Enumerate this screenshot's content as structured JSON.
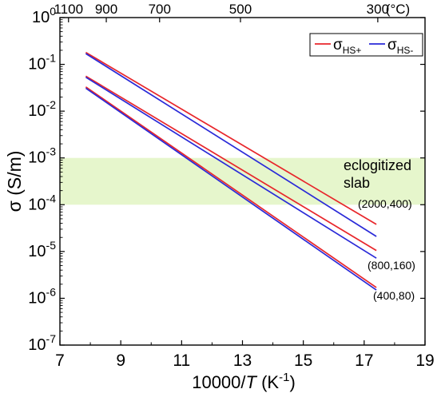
{
  "chart_data": {
    "type": "line",
    "xlabel": {
      "prefix": "10000/",
      "italic": "T",
      "suffix": " (K",
      "sup": "-1",
      "end": ")"
    },
    "ylabel": "σ (S/m)",
    "xlim": [
      7,
      19
    ],
    "x_ticks": [
      7,
      9,
      11,
      13,
      15,
      17,
      19
    ],
    "ylim_log10": [
      -7,
      0
    ],
    "y_ticks": [
      {
        "base": "10",
        "exp": "0"
      },
      {
        "base": "10",
        "exp": "-1"
      },
      {
        "base": "10",
        "exp": "-2"
      },
      {
        "base": "10",
        "exp": "-3"
      },
      {
        "base": "10",
        "exp": "-4"
      },
      {
        "base": "10",
        "exp": "-5"
      },
      {
        "base": "10",
        "exp": "-6"
      },
      {
        "base": "10",
        "exp": "-7"
      }
    ],
    "top_axis": {
      "ticks": [
        {
          "label": "1100",
          "celsius": 1100
        },
        {
          "label": "900",
          "celsius": 900
        },
        {
          "label": "700",
          "celsius": 700
        },
        {
          "label": "500",
          "celsius": 500
        },
        {
          "label": "300",
          "celsius": 300
        }
      ],
      "unit": "(°C)"
    },
    "band": {
      "label_line1": "eclogitized",
      "label_line2": "slab",
      "y_from": 0.0001,
      "y_to": 0.001,
      "color": "#e6f6cc"
    },
    "legend": {
      "position": "top-right",
      "items": [
        {
          "base": "σ",
          "sub": "HS+",
          "color": "#e8262b"
        },
        {
          "base": "σ",
          "sub": "HS-",
          "color": "#2a2ad8"
        }
      ]
    },
    "series": [
      {
        "group": "(2000,400)",
        "color": "#e8262b",
        "x": [
          7.85,
          17.4
        ],
        "y": [
          0.18,
          3.8e-05
        ]
      },
      {
        "group": "(2000,400)",
        "color": "#2a2ad8",
        "x": [
          7.85,
          17.4
        ],
        "y": [
          0.17,
          2.1e-05
        ]
      },
      {
        "group": "(800,160)",
        "color": "#e8262b",
        "x": [
          7.85,
          17.4
        ],
        "y": [
          0.056,
          1.05e-05
        ]
      },
      {
        "group": "(800,160)",
        "color": "#2a2ad8",
        "x": [
          7.85,
          17.4
        ],
        "y": [
          0.053,
          7.2e-06
        ]
      },
      {
        "group": "(400,80)",
        "color": "#e8262b",
        "x": [
          7.85,
          17.4
        ],
        "y": [
          0.033,
          1.7e-06
        ]
      },
      {
        "group": "(400,80)",
        "color": "#2a2ad8",
        "x": [
          7.85,
          17.4
        ],
        "y": [
          0.031,
          1.5e-06
        ]
      }
    ],
    "annotations": [
      "(2000,400)",
      "(800,160)",
      "(400,80)"
    ]
  }
}
